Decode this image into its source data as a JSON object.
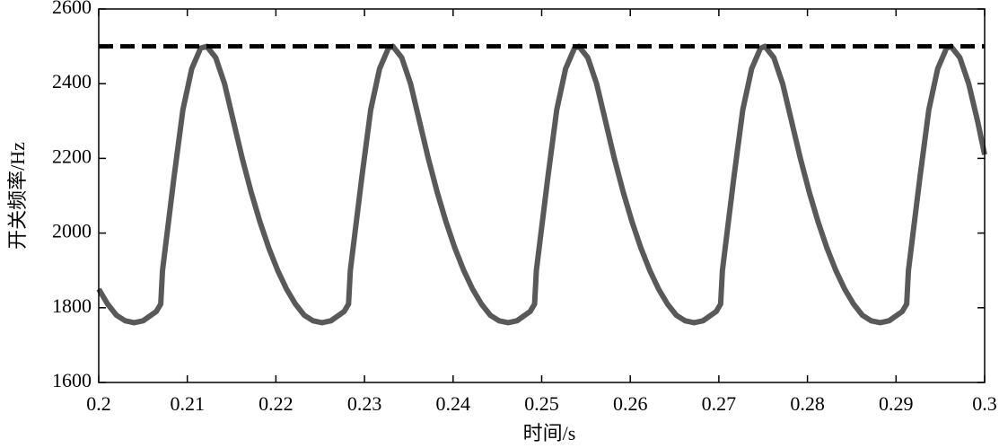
{
  "chart_data": {
    "type": "line",
    "xlabel": "时间/s",
    "ylabel": "开关频率/Hz",
    "xlim": [
      0.2,
      0.3
    ],
    "xticks": [
      0.2,
      0.21,
      0.22,
      0.23,
      0.24,
      0.25,
      0.26,
      0.27,
      0.28,
      0.29,
      0.3
    ],
    "ylim": [
      1600,
      2600
    ],
    "yticks": [
      1600,
      1800,
      2000,
      2200,
      2400,
      2600
    ],
    "grid": false,
    "series": [
      {
        "color": "#595959",
        "dash": false,
        "x": [
          0.2,
          0.201,
          0.202,
          0.203,
          0.204,
          0.205,
          0.2065,
          0.207,
          0.2072,
          0.2085,
          0.2095,
          0.2105,
          0.2115,
          0.2122,
          0.2132,
          0.2142,
          0.2152,
          0.2162,
          0.2172,
          0.2182,
          0.2192,
          0.2202,
          0.2212,
          0.2222,
          0.2232,
          0.2242,
          0.2252,
          0.2262,
          0.2277,
          0.2282,
          0.2284,
          0.2297,
          0.2307,
          0.2317,
          0.2327,
          0.2332,
          0.2342,
          0.2352,
          0.2362,
          0.2372,
          0.2382,
          0.2392,
          0.2402,
          0.2412,
          0.2422,
          0.2432,
          0.2442,
          0.2452,
          0.2462,
          0.2472,
          0.2487,
          0.2492,
          0.2494,
          0.2507,
          0.2517,
          0.2527,
          0.2537,
          0.2542,
          0.2552,
          0.2562,
          0.2572,
          0.2582,
          0.2592,
          0.2602,
          0.2612,
          0.2622,
          0.2632,
          0.2642,
          0.2652,
          0.2662,
          0.2672,
          0.2682,
          0.2697,
          0.2702,
          0.2704,
          0.2717,
          0.2727,
          0.2737,
          0.2747,
          0.2752,
          0.2762,
          0.2772,
          0.2782,
          0.2792,
          0.2802,
          0.2812,
          0.2822,
          0.2832,
          0.2842,
          0.2852,
          0.2862,
          0.2872,
          0.2882,
          0.2892,
          0.2907,
          0.2912,
          0.2914,
          0.2927,
          0.2937,
          0.2947,
          0.2957,
          0.2962,
          0.2972,
          0.2982,
          0.2992,
          0.3
        ],
        "values": [
          1850,
          1810,
          1780,
          1765,
          1760,
          1765,
          1790,
          1810,
          1900,
          2150,
          2330,
          2440,
          2495,
          2500,
          2470,
          2400,
          2300,
          2200,
          2110,
          2030,
          1960,
          1900,
          1850,
          1810,
          1780,
          1765,
          1760,
          1765,
          1790,
          1810,
          1900,
          2150,
          2330,
          2440,
          2495,
          2500,
          2470,
          2400,
          2300,
          2200,
          2110,
          2030,
          1960,
          1900,
          1850,
          1810,
          1780,
          1765,
          1760,
          1765,
          1790,
          1810,
          1900,
          2150,
          2330,
          2440,
          2495,
          2500,
          2470,
          2400,
          2300,
          2200,
          2110,
          2030,
          1960,
          1900,
          1850,
          1810,
          1780,
          1765,
          1760,
          1765,
          1790,
          1810,
          1900,
          2150,
          2330,
          2440,
          2495,
          2500,
          2470,
          2400,
          2300,
          2200,
          2110,
          2030,
          1960,
          1900,
          1850,
          1810,
          1780,
          1765,
          1760,
          1765,
          1790,
          1810,
          1900,
          2150,
          2330,
          2440,
          2495,
          2500,
          2470,
          2400,
          2300,
          2210
        ]
      },
      {
        "color": "#000000",
        "dash": true,
        "x": [
          0.2,
          0.3
        ],
        "values": [
          2500,
          2500
        ]
      }
    ]
  }
}
